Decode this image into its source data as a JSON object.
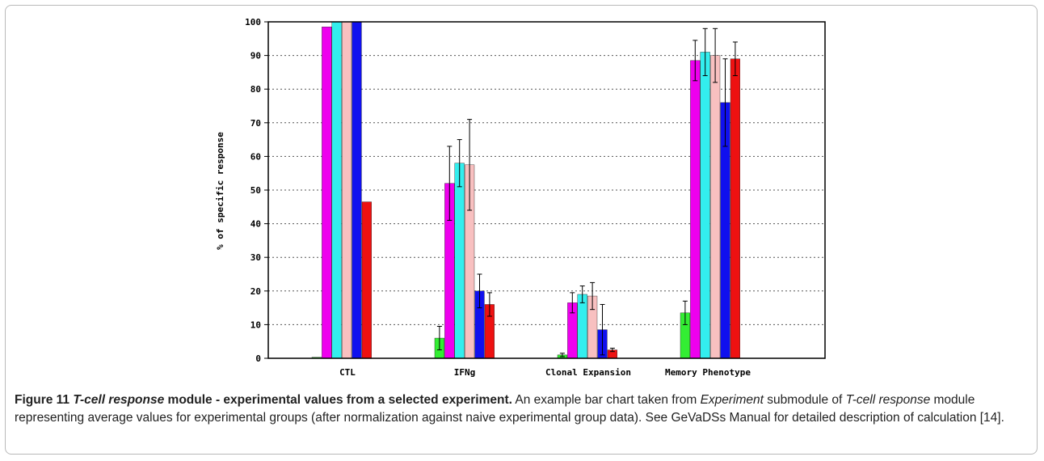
{
  "chart_data": {
    "type": "bar",
    "title": "",
    "xlabel": "",
    "ylabel": "% of specific response",
    "ylim": [
      0,
      100
    ],
    "yticks": [
      0,
      10,
      20,
      30,
      40,
      50,
      60,
      70,
      80,
      90,
      100
    ],
    "grid": "horizontal dotted",
    "legend": "none",
    "categories": [
      "CTL",
      "IFNg",
      "Clonal Expansion",
      "Memory Phenotype"
    ],
    "series": [
      {
        "color": "#33ee33",
        "values": [
          0.3,
          6,
          1,
          13.5
        ],
        "errors": [
          0,
          3.5,
          0.5,
          3.5
        ]
      },
      {
        "color": "#ee00ee",
        "values": [
          98.5,
          52,
          16.5,
          88.5
        ],
        "errors": [
          0,
          11,
          3,
          6
        ]
      },
      {
        "color": "#33eeee",
        "values": [
          100,
          58,
          19,
          91
        ],
        "errors": [
          0,
          7,
          2.5,
          7
        ]
      },
      {
        "color": "#f8c0c0",
        "values": [
          100,
          57.5,
          18.5,
          90
        ],
        "errors": [
          0,
          13.5,
          4,
          8
        ]
      },
      {
        "color": "#1010ee",
        "values": [
          100,
          20,
          8.5,
          76
        ],
        "errors": [
          0,
          5,
          7.5,
          13
        ]
      },
      {
        "color": "#ee1111",
        "values": [
          46.5,
          16,
          2.5,
          89
        ],
        "errors": [
          0,
          3.5,
          0.5,
          5
        ]
      }
    ]
  },
  "caption": {
    "figure_label": "Figure 11",
    "title_italic": "T-cell response",
    "title_rest": " module - experimental values from a selected experiment.",
    "body_1": " An example bar chart taken from ",
    "body_italic_1": "Experiment",
    "body_2": " submodule of ",
    "body_italic_2": "T-cell response",
    "body_3": " module representing average values for experimental groups (after normalization against naive experimental group data). See GeVaDSs Manual for detailed description of calculation [14]."
  }
}
